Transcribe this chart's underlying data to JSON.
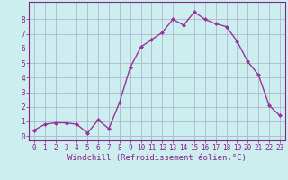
{
  "x": [
    0,
    1,
    2,
    3,
    4,
    5,
    6,
    7,
    8,
    9,
    10,
    11,
    12,
    13,
    14,
    15,
    16,
    17,
    18,
    19,
    20,
    21,
    22,
    23
  ],
  "y": [
    0.4,
    0.8,
    0.9,
    0.9,
    0.8,
    0.2,
    1.1,
    0.5,
    2.3,
    4.7,
    6.1,
    6.6,
    7.1,
    8.0,
    7.6,
    8.5,
    8.0,
    7.7,
    7.5,
    6.5,
    5.1,
    4.2,
    2.1,
    1.4
  ],
  "line_color": "#993399",
  "marker": "D",
  "marker_size": 2,
  "bg_color": "#cceeee",
  "grid_color": "#aaaacc",
  "xlabel": "Windchill (Refroidissement éolien,°C)",
  "ylabel": "",
  "ylim": [
    -0.3,
    9.2
  ],
  "xlim": [
    -0.5,
    23.5
  ],
  "xticks": [
    0,
    1,
    2,
    3,
    4,
    5,
    6,
    7,
    8,
    9,
    10,
    11,
    12,
    13,
    14,
    15,
    16,
    17,
    18,
    19,
    20,
    21,
    22,
    23
  ],
  "yticks": [
    0,
    1,
    2,
    3,
    4,
    5,
    6,
    7,
    8
  ],
  "tick_fontsize": 5.5,
  "xlabel_fontsize": 6.5,
  "label_color": "#882288",
  "spine_color": "#882288",
  "linewidth": 1.0
}
